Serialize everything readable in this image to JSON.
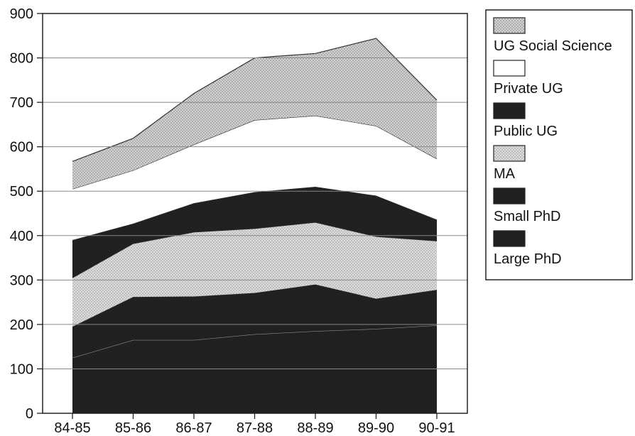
{
  "chart_data": {
    "type": "area",
    "stacked": true,
    "x": [
      "84-85",
      "85-86",
      "86-87",
      "87-88",
      "88-89",
      "89-90",
      "90-91"
    ],
    "series": [
      {
        "name": "Large PhD",
        "values": [
          125,
          165,
          165,
          178,
          185,
          190,
          198
        ],
        "fill": "#222222"
      },
      {
        "name": "Small PhD",
        "values": [
          70,
          97,
          98,
          93,
          105,
          68,
          80
        ],
        "fill": "#2c2c2c"
      },
      {
        "name": "MA",
        "values": [
          110,
          120,
          145,
          145,
          140,
          140,
          110
        ],
        "fill": "#d8d8d8"
      },
      {
        "name": "Public UG",
        "values": [
          85,
          45,
          65,
          82,
          80,
          92,
          48
        ],
        "fill": "#262626"
      },
      {
        "name": "Private UG",
        "values": [
          115,
          120,
          132,
          162,
          160,
          157,
          137
        ],
        "fill": "#ffffff"
      },
      {
        "name": "UG Social Science",
        "values": [
          62,
          72,
          115,
          140,
          140,
          197,
          132
        ],
        "fill": "#cfcfcf"
      }
    ],
    "ylim": [
      0,
      900
    ],
    "yticks": [
      0,
      100,
      200,
      300,
      400,
      500,
      600,
      700,
      800,
      900
    ],
    "grid": true,
    "legend": {
      "placement": "right",
      "order": [
        "UG Social Science",
        "Private UG",
        "Public UG",
        "MA",
        "Small PhD",
        "Large PhD"
      ]
    },
    "title": "",
    "xlabel": "",
    "ylabel": ""
  }
}
